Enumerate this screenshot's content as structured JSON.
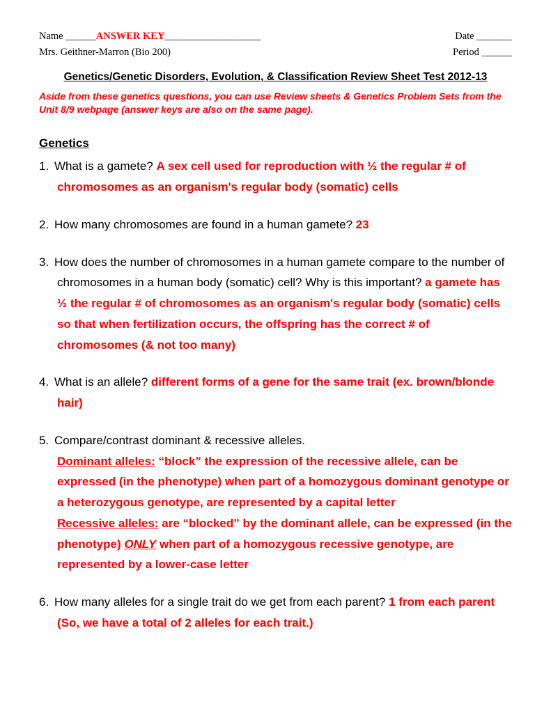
{
  "header": {
    "name_label": "Name ______",
    "answer_key": "ANSWER KEY",
    "name_trail": "___________________",
    "date_label": "Date _______",
    "teacher": "Mrs. Geithner-Marron (Bio 200)",
    "period_label": "Period ______"
  },
  "title": "Genetics/Genetic Disorders, Evolution, & Classification Review Sheet Test 2012-13",
  "note": "Aside from these genetics questions, you can use Review sheets & Genetics Problem Sets from the Unit 8/9 webpage (answer keys are also on the same page).",
  "section": "Genetics",
  "q1": {
    "num": "1.",
    "q": "What is a gamete? ",
    "a": "A sex cell used for reproduction with ½ the regular # of chromosomes as an organism's regular body (somatic) cells"
  },
  "q2": {
    "num": "2.",
    "q": "How many chromosomes are found in a human gamete? ",
    "a": "23"
  },
  "q3": {
    "num": "3.",
    "q": "How does the number of chromosomes in a human gamete compare to the number of chromosomes in a human body (somatic) cell? Why is this important? ",
    "a": "a gamete has ½ the regular # of chromosomes as an organism's regular body (somatic) cells so that when fertilization occurs, the offspring has the correct # of chromosomes (& not too many)"
  },
  "q4": {
    "num": "4.",
    "q": "What is an allele? ",
    "a": "different forms of a gene for the same trait (ex. brown/blonde hair)"
  },
  "q5": {
    "num": "5.",
    "q": "Compare/contrast dominant & recessive alleles.",
    "dom_label": "Dominant alleles:",
    "dom_text": " “block” the expression of the recessive allele, can be expressed (in the phenotype) when part of a homozygous dominant genotype or a heterozygous genotype, are represented by a capital letter",
    "rec_label": "Recessive alleles:",
    "rec_text1": " are “blocked” by the dominant allele, can be expressed (in the phenotype) ",
    "only": "ONLY",
    "rec_text2": " when part of a homozygous recessive genotype, are represented by a lower-case letter"
  },
  "q6": {
    "num": "6.",
    "q": "How many alleles for a single trait do we get from each parent? ",
    "a": "1 from each parent (So, we have a total of 2 alleles for each trait.)"
  }
}
